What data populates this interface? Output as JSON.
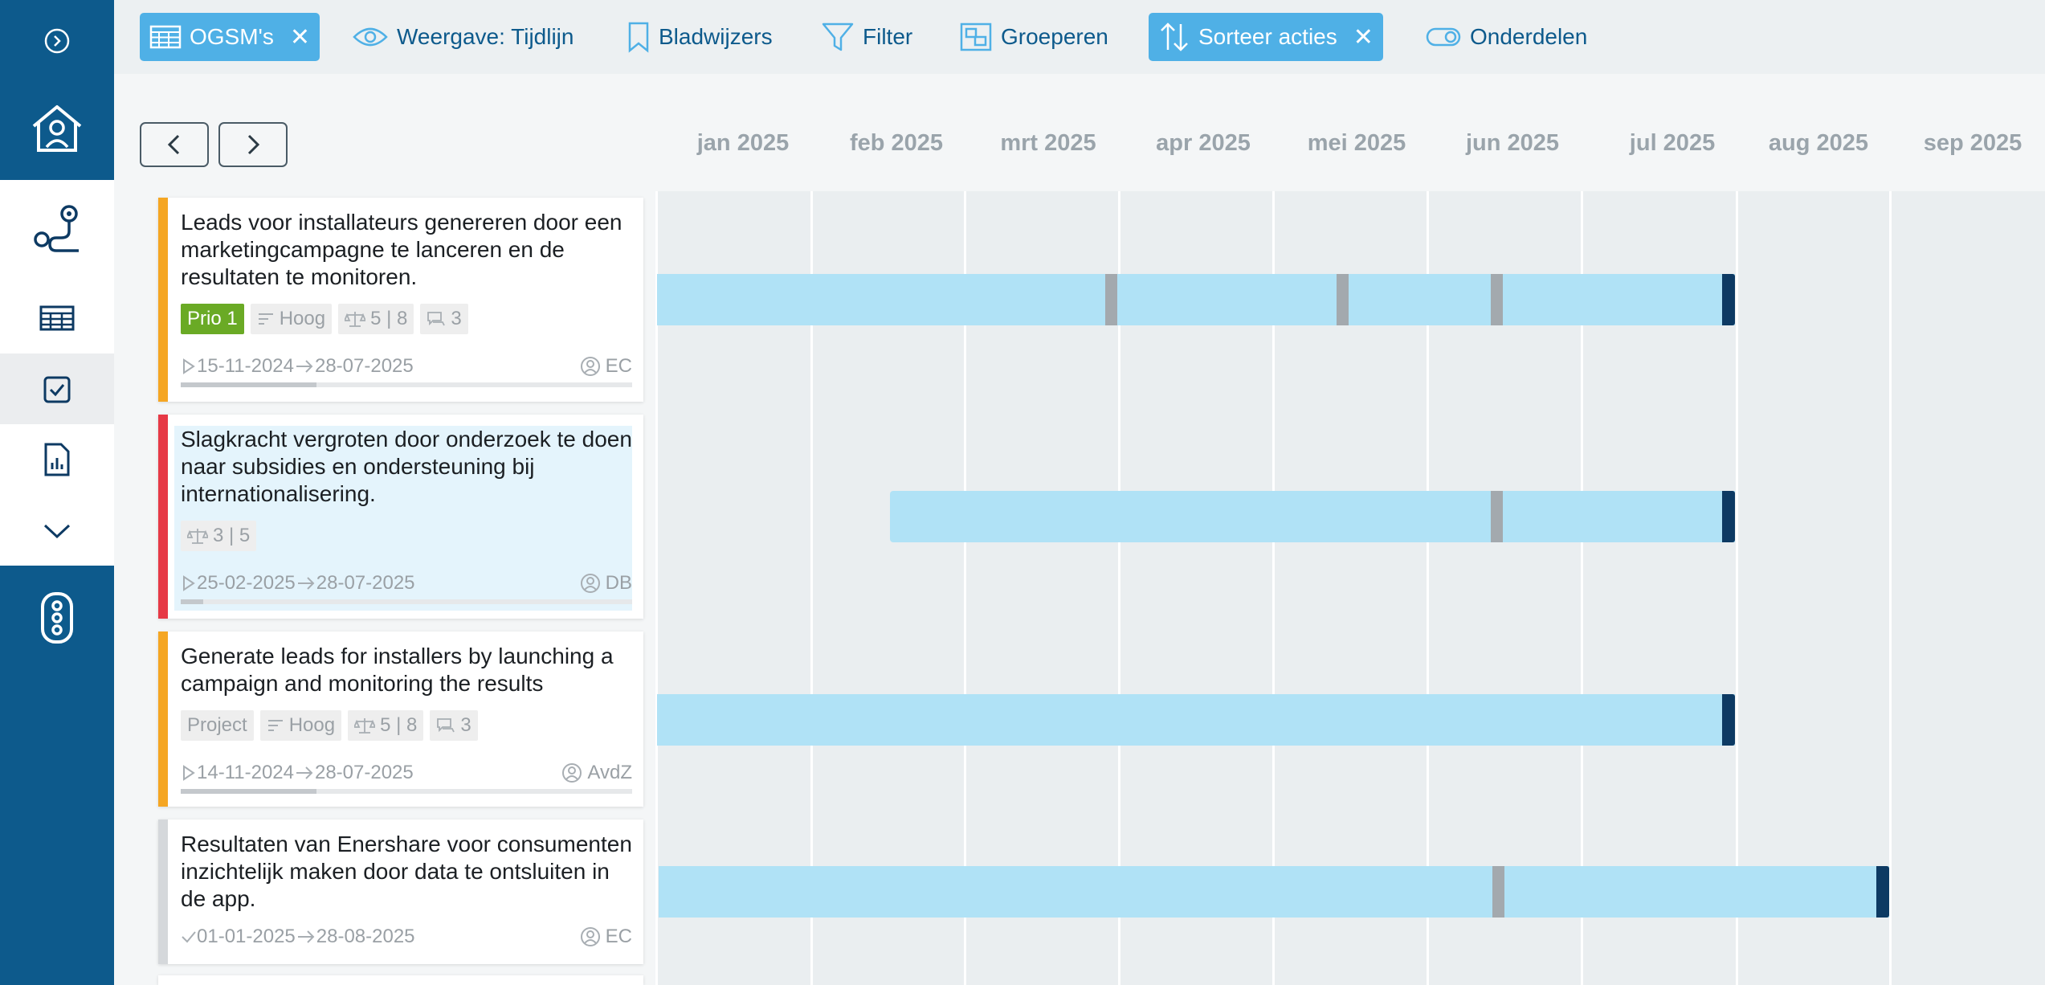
{
  "toolbar": {
    "view_chip": "OGSM's",
    "view_mode": "Weergave: Tijdlijn",
    "bookmarks": "Bladwijzers",
    "filter": "Filter",
    "group": "Groeperen",
    "sort_chip": "Sorteer acties",
    "parts": "Onderdelen",
    "close_glyph": "✕"
  },
  "timeline": {
    "months": [
      "jan 2025",
      "feb 2025",
      "mrt 2025",
      "apr 2025",
      "mei 2025",
      "jun 2025",
      "jul 2025",
      "aug 2025",
      "sep 2025"
    ]
  },
  "cards": [
    {
      "title": "Leads voor installateurs genereren door een marketingcampagne te lanceren en de resultaten te monitoren.",
      "stripe_color": "#f5a623",
      "tags": [
        {
          "type": "prio",
          "text": "Prio 1"
        },
        {
          "type": "priority",
          "text": "Hoog"
        },
        {
          "type": "weight",
          "text": "5 | 8"
        },
        {
          "type": "comments",
          "text": "3"
        }
      ],
      "start": "15-11-2024",
      "end": "28-07-2025",
      "owner": "EC",
      "progress": 0.3
    },
    {
      "title": "Slagkracht vergroten door onderzoek te doen naar subsidies en ondersteuning bij internationalisering.",
      "stripe_color": "#e63946",
      "tags": [
        {
          "type": "weight",
          "text": "3 | 5"
        }
      ],
      "start": "25-02-2025",
      "end": "28-07-2025",
      "owner": "DB",
      "progress": 0.05
    },
    {
      "title": "Generate leads for installers by launching a campaign and monitoring the results",
      "stripe_color": "#f5a623",
      "tags": [
        {
          "type": "project",
          "text": "Project"
        },
        {
          "type": "priority",
          "text": "Hoog"
        },
        {
          "type": "weight",
          "text": "5 | 8"
        },
        {
          "type": "comments",
          "text": "3"
        }
      ],
      "start": "14-11-2024",
      "end": "28-07-2025",
      "owner": "AvdZ",
      "progress": 0.3
    },
    {
      "title": "Resultaten van Enershare voor consumenten inzichtelijk maken door data te ontsluiten in de app.",
      "stripe_color": "#d5d8db",
      "tags": [],
      "start": "01-01-2025",
      "end": "28-08-2025",
      "owner": "EC",
      "progress": 0
    }
  ],
  "colors": {
    "sidebar": "#0d5a8c",
    "chip": "#4fb0e6",
    "bar": "#b0e2f6",
    "milestone": "#a3a9ae",
    "end_marker": "#0d3a63",
    "prio_tag": "#6aaa25"
  }
}
